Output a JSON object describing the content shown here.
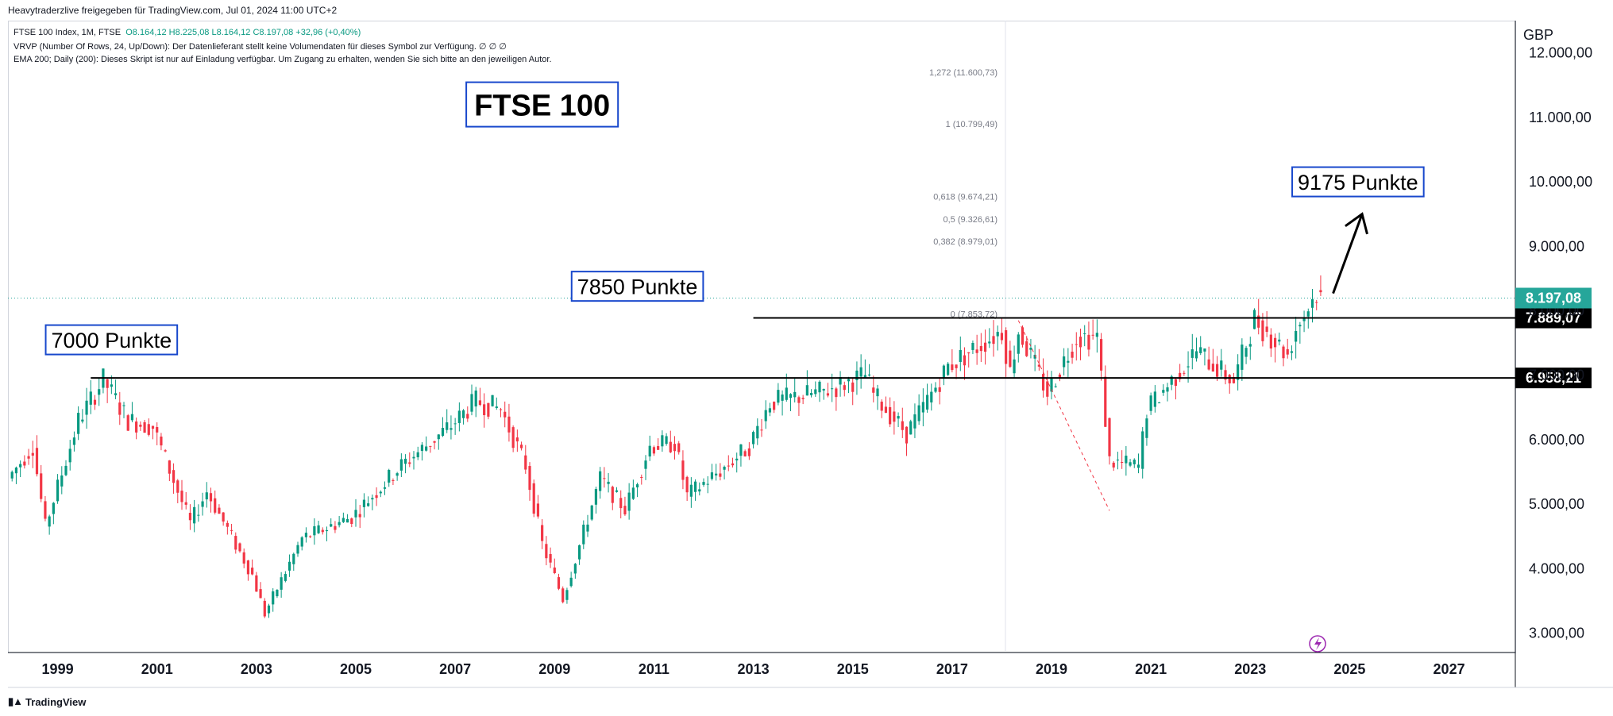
{
  "header": {
    "published": "Heavytraderzlive freigegeben für TradingView.com, Jul 01, 2024 11:00 UTC+2",
    "symbol": "FTSE 100 Index, 1M, FTSE",
    "ohlc": "O8.164,12  H8.225,08  L8.164,12  C8.197,08  +32,96 (+0,40%)",
    "vrvp": "VRVP (Number Of Rows, 24, Up/Down): Der Datenlieferant stellt keine Volumendaten für dieses Symbol zur Verfügung.  ∅  ∅  ∅",
    "ema": "EMA 200; Daily (200): Dieses Skript ist nur auf Einladung verfügbar. Um Zugang zu erhalten, wenden Sie sich bitte an den jeweiligen Autor."
  },
  "footer": {
    "brand": "TradingView",
    "logo_icon": "tradingview-logo-icon"
  },
  "colors": {
    "up": "#089981",
    "down": "#f23645",
    "annotation_border": "#1848cc",
    "last_price_bg": "#26a69a",
    "level_bg": "#000000"
  },
  "chart_data": {
    "type": "candlestick",
    "title": "FTSE 100",
    "currency": "GBP",
    "ylim": [
      2700,
      12500
    ],
    "xlim": [
      "1998-01",
      "2028-05"
    ],
    "y_ticks": [
      {
        "value": 3000,
        "label": "3.000,00"
      },
      {
        "value": 4000,
        "label": "4.000,00"
      },
      {
        "value": 5000,
        "label": "5.000,00"
      },
      {
        "value": 6000,
        "label": "6.000,00"
      },
      {
        "value": 7000,
        "label": "7.000,00"
      },
      {
        "value": 8000,
        "label": "8.000,00"
      },
      {
        "value": 9000,
        "label": "9.000,00"
      },
      {
        "value": 10000,
        "label": "10.000,00"
      },
      {
        "value": 11000,
        "label": "11.000,00"
      },
      {
        "value": 12000,
        "label": "12.000,00"
      }
    ],
    "x_ticks": [
      "1999",
      "2001",
      "2003",
      "2005",
      "2007",
      "2009",
      "2011",
      "2013",
      "2015",
      "2017",
      "2019",
      "2021",
      "2023",
      "2025",
      "2027"
    ],
    "price_path": [
      [
        "1998-01",
        5400
      ],
      [
        "1998-07",
        5900
      ],
      [
        "1998-10",
        4650
      ],
      [
        "1999-06",
        6300
      ],
      [
        "1999-12",
        6930
      ],
      [
        "2000-06",
        6300
      ],
      [
        "2000-12",
        6200
      ],
      [
        "2001-09",
        4700
      ],
      [
        "2002-01",
        5200
      ],
      [
        "2002-12",
        3900
      ],
      [
        "2003-03",
        3300
      ],
      [
        "2003-12",
        4470
      ],
      [
        "2004-12",
        4800
      ],
      [
        "2005-12",
        5600
      ],
      [
        "2006-12",
        6220
      ],
      [
        "2007-06",
        6600
      ],
      [
        "2007-12",
        6470
      ],
      [
        "2008-06",
        5600
      ],
      [
        "2008-10",
        4380
      ],
      [
        "2009-03",
        3530
      ],
      [
        "2009-12",
        5400
      ],
      [
        "2010-06",
        4920
      ],
      [
        "2010-12",
        5900
      ],
      [
        "2011-06",
        5950
      ],
      [
        "2011-09",
        5130
      ],
      [
        "2012-06",
        5570
      ],
      [
        "2012-12",
        5900
      ],
      [
        "2013-05",
        6580
      ],
      [
        "2014-06",
        6750
      ],
      [
        "2015-04",
        7000
      ],
      [
        "2015-06",
        6700
      ],
      [
        "2016-02",
        6100
      ],
      [
        "2016-06",
        6500
      ],
      [
        "2016-12",
        7140
      ],
      [
        "2018-01",
        7700
      ],
      [
        "2018-03",
        7050
      ],
      [
        "2018-05",
        7700
      ],
      [
        "2018-12",
        6730
      ],
      [
        "2019-07",
        7600
      ],
      [
        "2019-12",
        7600
      ],
      [
        "2020-03",
        5670
      ],
      [
        "2020-10",
        5580
      ],
      [
        "2020-12",
        6460
      ],
      [
        "2021-12",
        7380
      ],
      [
        "2022-09",
        6900
      ],
      [
        "2023-02",
        7880
      ],
      [
        "2023-10",
        7320
      ],
      [
        "2023-12",
        7730
      ],
      [
        "2024-05",
        8280
      ],
      [
        "2024-06",
        8197
      ]
    ],
    "last_close": 8197.08,
    "last_price_label": "8.197,08",
    "horizontal_levels": [
      {
        "value": 7889.07,
        "label": "7.889,07",
        "from": "2013-01"
      },
      {
        "value": 6958.21,
        "label": "6.958,21",
        "from": "1999-09"
      }
    ],
    "fibonacci": {
      "levels": [
        {
          "ratio": "1,272",
          "value": 11600.73,
          "label": "1,272 (11.600,73)"
        },
        {
          "ratio": "1",
          "value": 10799.49,
          "label": "1 (10.799,49)"
        },
        {
          "ratio": "0,618",
          "value": 9674.21,
          "label": "0,618 (9.674,21)"
        },
        {
          "ratio": "0,5",
          "value": 9326.61,
          "label": "0,5 (9.326,61)"
        },
        {
          "ratio": "0,382",
          "value": 8979.01,
          "label": "0,382 (8.979,01)"
        },
        {
          "ratio": "0",
          "value": 7853.72,
          "label": "0 (7.853,72)"
        }
      ],
      "swing": [
        [
          "2018-05",
          7850
        ],
        [
          "2020-03",
          4900
        ]
      ]
    },
    "annotations": [
      {
        "text": "FTSE 100",
        "at": [
          "2008-10",
          11200
        ],
        "size": "large"
      },
      {
        "text": "7000 Punkte",
        "at": [
          "2000-02",
          7550
        ],
        "size": "medium"
      },
      {
        "text": "7850 Punkte",
        "at": [
          "2010-09",
          8380
        ],
        "size": "medium"
      },
      {
        "text": "9175 Punkte",
        "at": [
          "2025-03",
          10000
        ],
        "size": "medium"
      }
    ],
    "arrow": {
      "from": [
        "2024-09",
        8270
      ],
      "to": [
        "2025-04",
        9500
      ]
    },
    "grid": false
  }
}
